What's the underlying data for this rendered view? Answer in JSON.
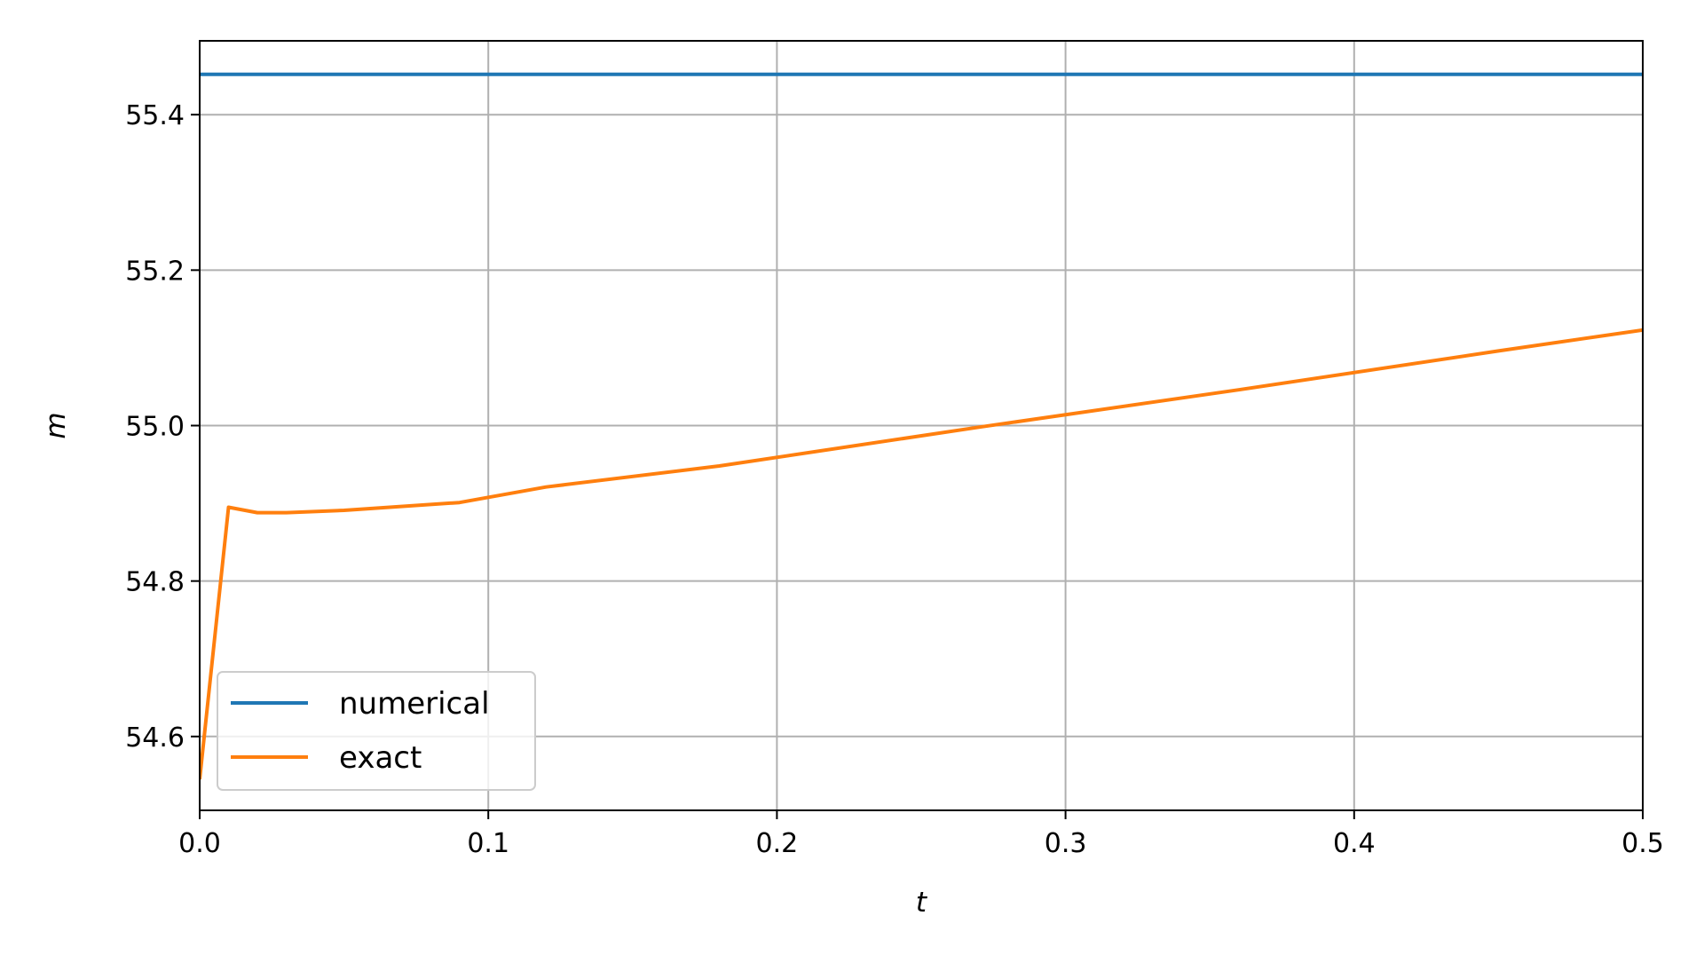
{
  "chart_data": {
    "type": "line",
    "title": "",
    "xlabel": "t",
    "ylabel": "m",
    "xlim": [
      0.0,
      0.5
    ],
    "ylim": [
      54.505,
      55.495
    ],
    "x_ticks": [
      0.0,
      0.1,
      0.2,
      0.3,
      0.4,
      0.5
    ],
    "x_tick_labels": [
      "0.0",
      "0.1",
      "0.2",
      "0.3",
      "0.4",
      "0.5"
    ],
    "y_ticks": [
      54.6,
      54.8,
      55.0,
      55.2,
      55.4
    ],
    "y_tick_labels": [
      "54.6",
      "54.8",
      "55.0",
      "55.2",
      "55.4"
    ],
    "grid": true,
    "legend_position": "lower-left",
    "series": [
      {
        "name": "numerical",
        "color": "#1f77b4",
        "x": [
          0.0,
          0.5
        ],
        "y": [
          55.452,
          55.452
        ]
      },
      {
        "name": "exact",
        "color": "#ff7f0e",
        "x": [
          0.0,
          0.01,
          0.02,
          0.03,
          0.05,
          0.09,
          0.12,
          0.18,
          0.27,
          0.36,
          0.45,
          0.5
        ],
        "y": [
          54.545,
          54.895,
          54.888,
          54.888,
          54.891,
          54.901,
          54.921,
          54.948,
          54.998,
          55.046,
          55.096,
          55.123
        ]
      }
    ]
  }
}
